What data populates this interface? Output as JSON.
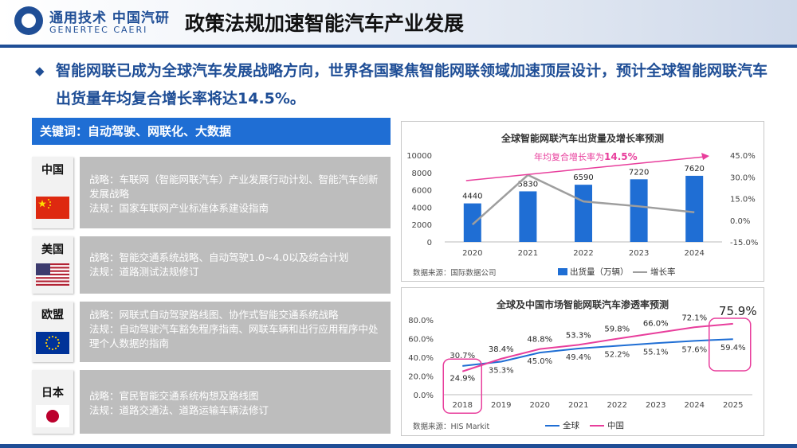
{
  "header": {
    "logo_cn": "通用技术 中国汽研",
    "logo_en": "GENERTEC CAERI",
    "title": "政策法规加速智能汽车产业发展"
  },
  "intro": {
    "bullet": "◆",
    "text": "智能网联已成为全球汽车发展战略方向，世界各国聚焦智能网联领域加速顶层设计，预计全球智能网联汽车出货量年均复合增长率将达14.5%。"
  },
  "keywords": "关键词：自动驾驶、网联化、大数据",
  "countries": [
    {
      "name": "中国",
      "flag": "china-flag",
      "lines": [
        "战略：车联网（智能网联汽车）产业发展行动计划、智能汽车创新发展战略",
        "法规：国家车联网产业标准体系建设指南"
      ]
    },
    {
      "name": "美国",
      "flag": "usa-flag",
      "lines": [
        "战略：智能交通系统战略、自动驾驶1.0~4.0以及综合计划",
        "法规：道路测试法规修订"
      ]
    },
    {
      "name": "欧盟",
      "flag": "eu-flag",
      "lines": [
        "战略：网联式自动驾驶路线图、协作式智能交通系统战略",
        "法规：自动驾驶汽车豁免程序指南、网联车辆和出行应用程序中处理个人数据的指南"
      ]
    },
    {
      "name": "日本",
      "flag": "japan-flag",
      "lines": [
        "战略：官民智能交通系统构想及路线图",
        "法规：道路交通法、道路运输车辆法修订"
      ]
    }
  ],
  "colors": {
    "brand": "#1f4e96",
    "bar": "#1f6ed4",
    "growth": "#9e9e9e",
    "global": "#1f6ed4",
    "china": "#e83e9c",
    "policy_bg": "#bdbdbd"
  },
  "chart_data": [
    {
      "type": "bar",
      "title": "全球智能网联汽车出货量及增长率预测",
      "categories": [
        "2020",
        "2021",
        "2022",
        "2023",
        "2024"
      ],
      "series": [
        {
          "name": "出货量（万辆）",
          "type": "bar",
          "values": [
            4440,
            5830,
            6590,
            7220,
            7620
          ],
          "labels": [
            "4440",
            "5830",
            "6590",
            "7220",
            "7620"
          ]
        },
        {
          "name": "增长率",
          "type": "line",
          "axis": "right",
          "values": [
            -3.0,
            31.3,
            13.0,
            9.6,
            5.5
          ]
        }
      ],
      "ylim": [
        0,
        10000
      ],
      "yticks": [
        "10000",
        "8000",
        "6000",
        "4000",
        "2000",
        "0"
      ],
      "y2lim": [
        -15,
        45
      ],
      "y2ticks": [
        "45.0%",
        "30.0%",
        "15.0%",
        "0.0%",
        "-15.0%"
      ],
      "annotation": {
        "prefix": "年均复合增长率为",
        "value": "14.5%"
      },
      "source": "数据来源：国际数据公司",
      "legend": [
        "出货量（万辆）",
        "增长率"
      ]
    },
    {
      "type": "line",
      "title": "全球及中国市场智能网联汽车渗透率预测",
      "categories": [
        "2018",
        "2019",
        "2020",
        "2021",
        "2022",
        "2023",
        "2024",
        "2025"
      ],
      "series": [
        {
          "name": "全球",
          "values": [
            30.7,
            35.3,
            45.0,
            49.4,
            52.2,
            55.1,
            57.6,
            59.4
          ],
          "labels": [
            "30.7%",
            "35.3%",
            "45.0%",
            "49.4%",
            "52.2%",
            "55.1%",
            "57.6%",
            "59.4%"
          ]
        },
        {
          "name": "中国",
          "values": [
            24.9,
            38.4,
            48.8,
            53.3,
            59.8,
            66.0,
            72.1,
            75.9
          ],
          "labels": [
            "24.9%",
            "38.4%",
            "48.8%",
            "53.3%",
            "59.8%",
            "66.0%",
            "72.1%",
            "75.9%"
          ]
        }
      ],
      "ylim": [
        0,
        80
      ],
      "yticks": [
        "80.0%",
        "60.0%",
        "40.0%",
        "20.0%",
        "0.0%"
      ],
      "source": "数据来源：HIS Markit",
      "legend": [
        "全球",
        "中国"
      ]
    }
  ]
}
